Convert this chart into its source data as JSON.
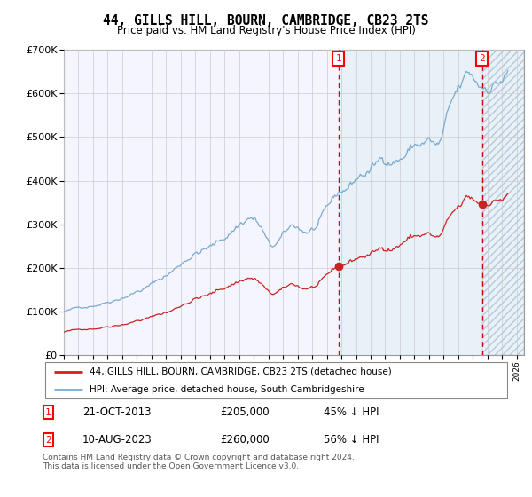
{
  "title": "44, GILLS HILL, BOURN, CAMBRIDGE, CB23 2TS",
  "subtitle": "Price paid vs. HM Land Registry's House Price Index (HPI)",
  "hpi_legend": "HPI: Average price, detached house, South Cambridgeshire",
  "price_legend": "44, GILLS HILL, BOURN, CAMBRIDGE, CB23 2TS (detached house)",
  "transaction1_date": "21-OCT-2013",
  "transaction1_price": 205000,
  "transaction1_label": "45% ↓ HPI",
  "transaction2_date": "10-AUG-2023",
  "transaction2_price": 260000,
  "transaction2_label": "56% ↓ HPI",
  "footer": "Contains HM Land Registry data © Crown copyright and database right 2024.\nThis data is licensed under the Open Government Licence v3.0.",
  "hpi_color": "#7aaace",
  "price_color": "#cc2222",
  "background_shaded": "#ddeeff",
  "vline_color": "#cc0000",
  "ylim": [
    0,
    700000
  ],
  "xstart": 1995.0,
  "xend": 2026.5
}
